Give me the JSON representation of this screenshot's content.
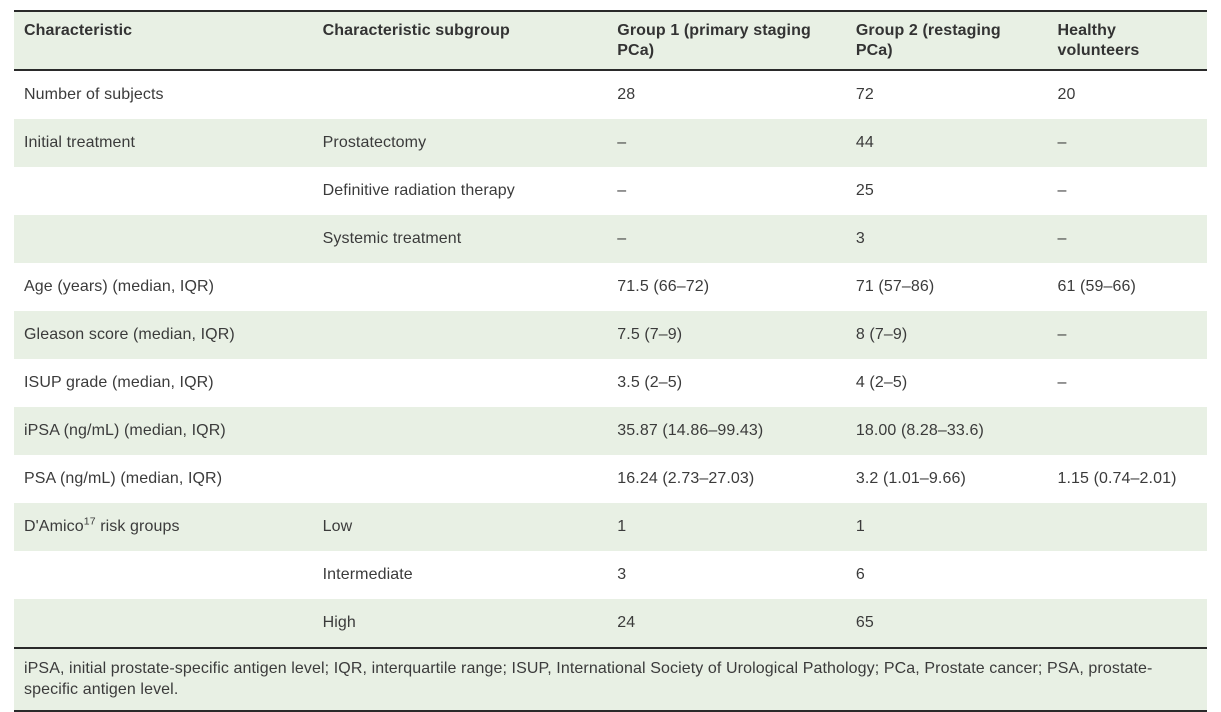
{
  "table": {
    "columns": [
      "Characteristic",
      "Characteristic subgroup",
      "Group 1 (primary staging PCa)",
      "Group 2 (restaging PCa)",
      "Healthy volunteers"
    ],
    "rows": [
      {
        "c1": "Number of subjects",
        "c2": "",
        "c3": "28",
        "c4": "72",
        "c5": "20"
      },
      {
        "c1": "Initial treatment",
        "c2": "Prostatectomy",
        "c3": "–",
        "c4": "44",
        "c5": "–"
      },
      {
        "c1": "",
        "c2": "Definitive radiation therapy",
        "c3": "–",
        "c4": "25",
        "c5": "–"
      },
      {
        "c1": "",
        "c2": "Systemic treatment",
        "c3": "–",
        "c4": "3",
        "c5": "–"
      },
      {
        "c1": "Age (years) (median, IQR)",
        "c2": "",
        "c3": "71.5 (66–72)",
        "c4": "71 (57–86)",
        "c5": "61 (59–66)"
      },
      {
        "c1": "Gleason score (median, IQR)",
        "c2": "",
        "c3": "7.5 (7–9)",
        "c4": "8 (7–9)",
        "c5": "–"
      },
      {
        "c1": "ISUP grade (median, IQR)",
        "c2": "",
        "c3": "3.5 (2–5)",
        "c4": "4 (2–5)",
        "c5": "–"
      },
      {
        "c1": "iPSA (ng/mL) (median, IQR)",
        "c2": "",
        "c3": "35.87 (14.86–99.43)",
        "c4": "18.00 (8.28–33.6)",
        "c5": ""
      },
      {
        "c1": "PSA (ng/mL) (median, IQR)",
        "c2": "",
        "c3": "16.24 (2.73–27.03)",
        "c4": "3.2 (1.01–9.66)",
        "c5": "1.15 (0.74–2.01)"
      },
      {
        "c1_pre": "D'Amico",
        "c1_sup": "17",
        "c1_post": " risk groups",
        "c2": "Low",
        "c3": "1",
        "c4": "1",
        "c5": ""
      },
      {
        "c1": "",
        "c2": "Intermediate",
        "c3": "3",
        "c4": "6",
        "c5": ""
      },
      {
        "c1": "",
        "c2": "High",
        "c3": "24",
        "c4": "65",
        "c5": ""
      }
    ],
    "footnote": "iPSA, initial prostate-specific antigen level; IQR, interquartile range; ISUP, International Society of Urological Pathology; PCa, Prostate cancer; PSA, prostate-specific antigen level.",
    "colors": {
      "stripe_green": "#e8f0e4",
      "border_dark": "#2a2a2a",
      "text": "#3b3b3b"
    }
  }
}
